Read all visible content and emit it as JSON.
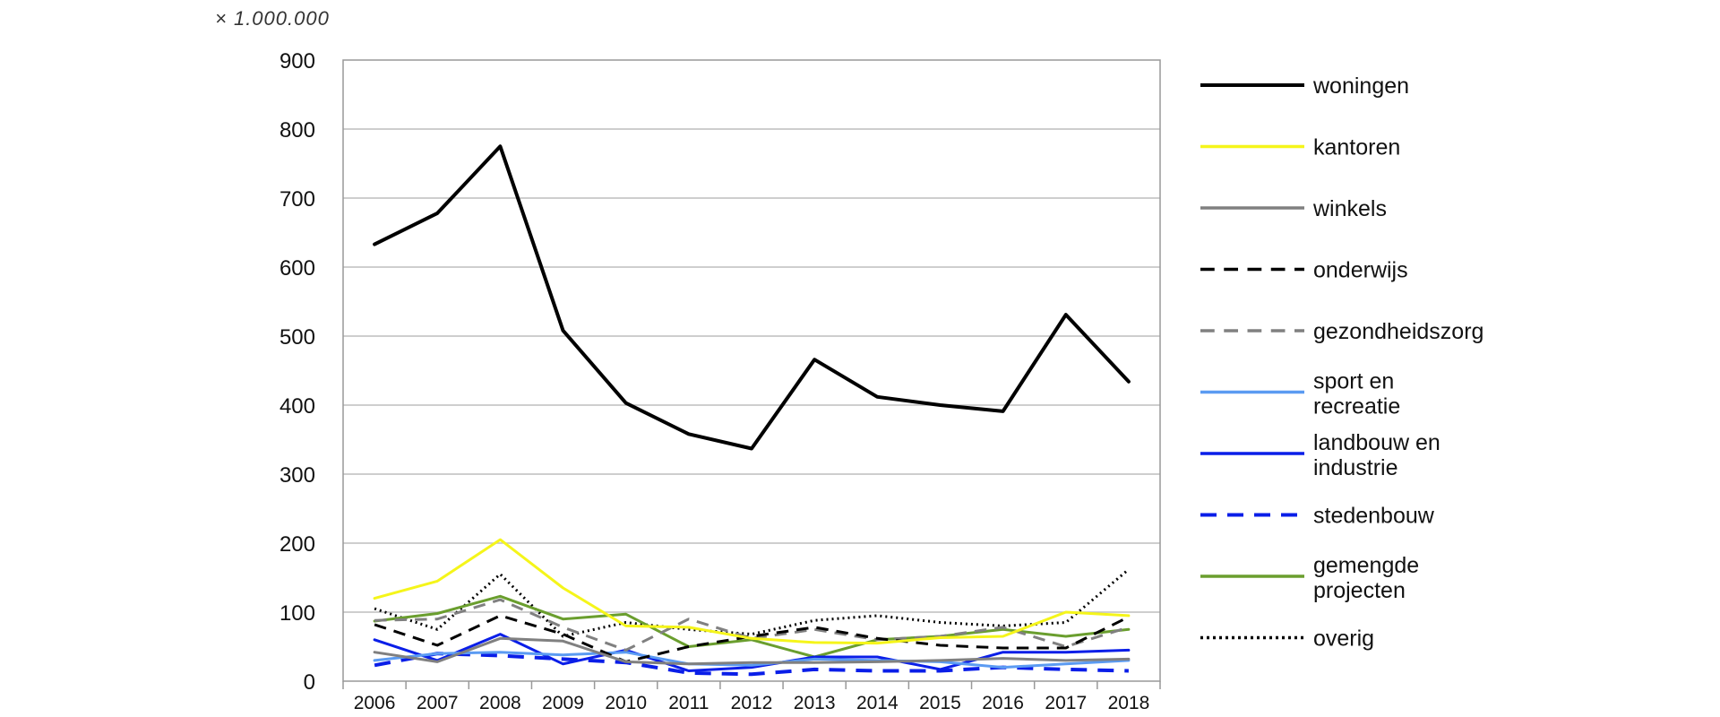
{
  "chart_data": {
    "type": "line",
    "unit_label": "× 1.000.000",
    "x": [
      "2006",
      "2007",
      "2008",
      "2009",
      "2010",
      "2011",
      "2012",
      "2013",
      "2014",
      "2015",
      "2016",
      "2017",
      "2018"
    ],
    "ylim": [
      0,
      900
    ],
    "yticks": [
      "0",
      "100",
      "200",
      "300",
      "400",
      "500",
      "600",
      "700",
      "800",
      "900"
    ],
    "grid": true,
    "legend_position": "right",
    "series": [
      {
        "name": "woningen",
        "color": "#000000",
        "style": "solid",
        "width": 4,
        "values": [
          633,
          678,
          775,
          508,
          403,
          358,
          337,
          466,
          412,
          400,
          391,
          531,
          434
        ]
      },
      {
        "name": "kantoren",
        "color": "#f5f51a",
        "style": "solid",
        "width": 3,
        "values": [
          120,
          145,
          205,
          135,
          80,
          78,
          62,
          56,
          55,
          63,
          65,
          100,
          95
        ]
      },
      {
        "name": "winkels",
        "color": "#808080",
        "style": "solid",
        "width": 3,
        "values": [
          42,
          28,
          62,
          58,
          28,
          25,
          27,
          27,
          28,
          30,
          33,
          30,
          32
        ]
      },
      {
        "name": "onderwijs",
        "color": "#000000",
        "style": "dash",
        "width": 3,
        "values": [
          82,
          52,
          95,
          68,
          28,
          50,
          65,
          78,
          62,
          52,
          48,
          48,
          93
        ]
      },
      {
        "name": "gezondheidszorg",
        "color": "#808080",
        "style": "dash",
        "width": 3,
        "values": [
          88,
          90,
          118,
          78,
          45,
          90,
          62,
          75,
          60,
          65,
          78,
          50,
          78
        ]
      },
      {
        "name": "sport en recreatie",
        "color": "#5b9bf2",
        "style": "solid",
        "width": 3,
        "values": [
          30,
          40,
          42,
          38,
          42,
          25,
          23,
          32,
          30,
          28,
          20,
          25,
          30
        ]
      },
      {
        "name": "landbouw en industrie",
        "color": "#0a1ee8",
        "style": "solid",
        "width": 3,
        "values": [
          60,
          30,
          68,
          25,
          45,
          15,
          20,
          35,
          35,
          17,
          42,
          42,
          45
        ]
      },
      {
        "name": "stedenbouw",
        "color": "#0a1ee8",
        "style": "dash",
        "width": 4,
        "values": [
          23,
          40,
          37,
          32,
          27,
          12,
          10,
          17,
          15,
          15,
          20,
          17,
          15
        ]
      },
      {
        "name": "gemengde projecten",
        "color": "#6a9e2e",
        "style": "solid",
        "width": 3,
        "values": [
          87,
          98,
          123,
          90,
          97,
          50,
          60,
          35,
          60,
          65,
          75,
          65,
          75
        ]
      },
      {
        "name": "overig",
        "color": "#000000",
        "style": "dot",
        "width": 3,
        "values": [
          105,
          75,
          155,
          65,
          85,
          75,
          68,
          88,
          95,
          85,
          80,
          85,
          162
        ]
      }
    ],
    "legend_labels": [
      [
        "woningen"
      ],
      [
        "kantoren"
      ],
      [
        "winkels"
      ],
      [
        "onderwijs"
      ],
      [
        "gezondheidszorg"
      ],
      [
        "sport en",
        "recreatie"
      ],
      [
        "landbouw en",
        "industrie"
      ],
      [
        "stedenbouw"
      ],
      [
        "gemengde",
        "projecten"
      ],
      [
        "overig"
      ]
    ]
  }
}
